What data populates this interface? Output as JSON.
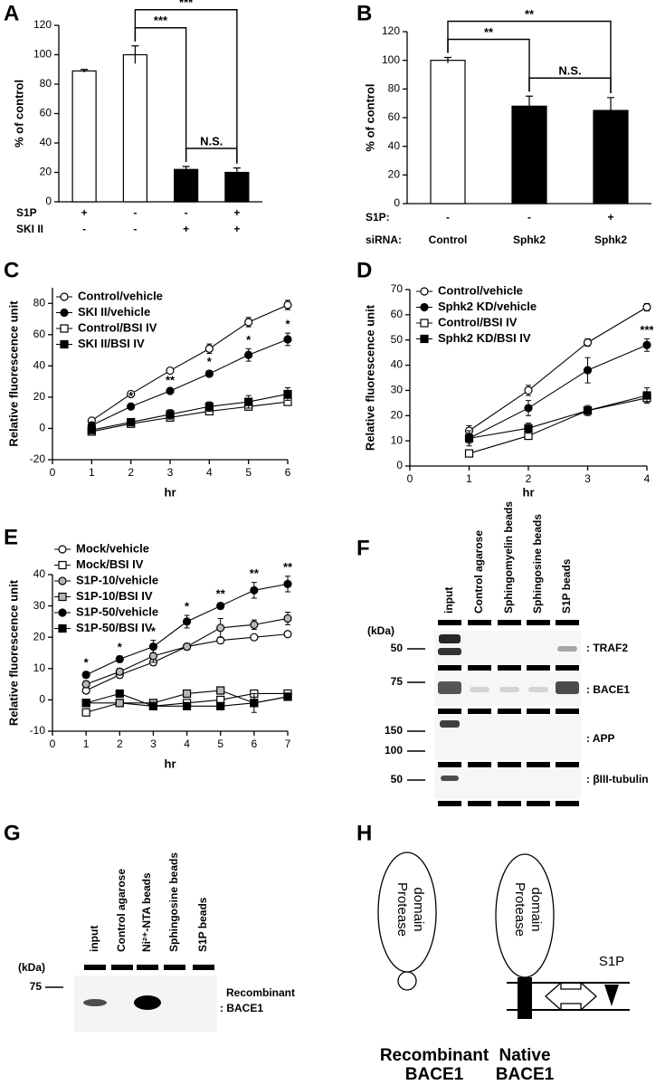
{
  "chart_data": [
    {
      "type": "bar",
      "panel": "A",
      "ylabel": "% of control",
      "ylim": [
        0,
        120
      ],
      "yticks": [
        0,
        20,
        40,
        60,
        80,
        100,
        120
      ],
      "values": [
        89,
        100,
        22,
        20
      ],
      "errors": [
        1,
        6,
        2,
        3
      ],
      "colors": [
        "#ffffff",
        "#ffffff",
        "#000000",
        "#000000"
      ],
      "conditions": [
        {
          "label": "S1P",
          "values": [
            "+",
            "-",
            "-",
            "+"
          ]
        },
        {
          "label": "SKI II",
          "values": [
            "-",
            "-",
            "+",
            "+"
          ]
        }
      ],
      "brackets": [
        {
          "from": 2,
          "to": 3,
          "text": "N.S."
        },
        {
          "from": 1,
          "to": 2,
          "text": "***"
        },
        {
          "from": 1,
          "to": 3,
          "text": "***"
        }
      ]
    },
    {
      "type": "bar",
      "panel": "B",
      "ylabel": "% of control",
      "ylim": [
        0,
        120
      ],
      "yticks": [
        0,
        20,
        40,
        60,
        80,
        100,
        120
      ],
      "values": [
        100,
        68,
        65
      ],
      "errors": [
        2,
        7,
        9
      ],
      "colors": [
        "#ffffff",
        "#000000",
        "#000000"
      ],
      "conditions": [
        {
          "label": "S1P:",
          "values": [
            "-",
            "-",
            "+"
          ]
        },
        {
          "label": "siRNA:",
          "values": [
            "Control",
            "Sphk2",
            "Sphk2"
          ]
        }
      ],
      "brackets": [
        {
          "from": 1,
          "to": 2,
          "text": "N.S."
        },
        {
          "from": 0,
          "to": 1,
          "text": "**"
        },
        {
          "from": 0,
          "to": 2,
          "text": "**"
        }
      ]
    },
    {
      "type": "line",
      "panel": "C",
      "xlabel": "hr",
      "ylabel": "Relative fluorescence unit",
      "xlim": [
        0,
        6
      ],
      "xticks": [
        0,
        1,
        2,
        3,
        4,
        5,
        6
      ],
      "ylim": [
        -20,
        90
      ],
      "yticks": [
        -20,
        0,
        20,
        40,
        60,
        80
      ],
      "x": [
        1,
        2,
        3,
        4,
        5,
        6
      ],
      "series": [
        {
          "name": "Control/vehicle",
          "marker": "circle",
          "fill": "#ffffff",
          "values": [
            5,
            22,
            37,
            51,
            68,
            79
          ],
          "errors": [
            1,
            1,
            1,
            3,
            3,
            3
          ]
        },
        {
          "name": "SKI II/vehicle",
          "marker": "circle",
          "fill": "#000000",
          "values": [
            2,
            14,
            24,
            35,
            47,
            57
          ],
          "errors": [
            1,
            1,
            1,
            2,
            4,
            4
          ]
        },
        {
          "name": "Control/BSI IV",
          "marker": "square",
          "fill": "#ffffff",
          "values": [
            -2,
            3,
            7,
            11,
            14,
            17
          ],
          "errors": [
            1,
            1,
            1,
            2,
            2,
            2
          ]
        },
        {
          "name": "SKI II/BSI IV",
          "marker": "square",
          "fill": "#000000",
          "values": [
            -1,
            4,
            9,
            14,
            17,
            22
          ],
          "errors": [
            2,
            1,
            3,
            3,
            4,
            4
          ]
        }
      ],
      "annotations": [
        {
          "x": 2,
          "series": 1,
          "text": "*"
        },
        {
          "x": 3,
          "series": 1,
          "text": "**"
        },
        {
          "x": 4,
          "series": 1,
          "text": "*"
        },
        {
          "x": 5,
          "series": 1,
          "text": "*"
        },
        {
          "x": 6,
          "series": 1,
          "text": "*"
        }
      ]
    },
    {
      "type": "line",
      "panel": "D",
      "xlabel": "hr",
      "ylabel": "Relative fluorescence unit",
      "xlim": [
        0,
        4
      ],
      "xticks": [
        0,
        1,
        2,
        3,
        4
      ],
      "ylim": [
        0,
        70
      ],
      "yticks": [
        0,
        10,
        20,
        30,
        40,
        50,
        60,
        70
      ],
      "x": [
        1,
        2,
        3,
        4
      ],
      "series": [
        {
          "name": "Control/vehicle",
          "marker": "circle",
          "fill": "#ffffff",
          "values": [
            14,
            30,
            49,
            63
          ],
          "errors": [
            2,
            2,
            1.5,
            1.5
          ]
        },
        {
          "name": "Sphk2 KD/vehicle",
          "marker": "circle",
          "fill": "#000000",
          "values": [
            11,
            23,
            38,
            48
          ],
          "errors": [
            3,
            3,
            5,
            2.5
          ]
        },
        {
          "name": "Control/BSI IV",
          "marker": "square",
          "fill": "#ffffff",
          "values": [
            5,
            12,
            22,
            27
          ],
          "errors": [
            1,
            1,
            1,
            2
          ]
        },
        {
          "name": "Sphk2 KD/BSI IV",
          "marker": "square",
          "fill": "#000000",
          "values": [
            11,
            15,
            22,
            28
          ],
          "errors": [
            2,
            2,
            2,
            3
          ]
        }
      ],
      "annotations": [
        {
          "x": 4,
          "series": 1,
          "text": "***"
        }
      ]
    },
    {
      "type": "line",
      "panel": "E",
      "xlabel": "hr",
      "ylabel": "Relative fluorescence unit",
      "xlim": [
        0,
        7
      ],
      "xticks": [
        0,
        1,
        2,
        3,
        4,
        5,
        6,
        7
      ],
      "ylim": [
        -10,
        40
      ],
      "yticks": [
        -10,
        0,
        10,
        20,
        30,
        40
      ],
      "x": [
        1,
        2,
        3,
        4,
        5,
        6,
        7
      ],
      "series": [
        {
          "name": "Mock/vehicle",
          "marker": "circle",
          "fill": "#ffffff",
          "values": [
            3,
            8,
            12,
            17,
            19,
            20,
            21
          ],
          "errors": [
            1,
            1,
            1,
            1,
            1,
            0.5,
            0.5
          ]
        },
        {
          "name": "Mock/BSI IV",
          "marker": "square",
          "fill": "#ffffff",
          "values": [
            -4,
            -1,
            -2,
            -1,
            0,
            2,
            2
          ],
          "errors": [
            0.5,
            1,
            1,
            1,
            1,
            0.5,
            0.5
          ]
        },
        {
          "name": "S1P-10/vehicle",
          "marker": "circle",
          "fill": "#b8b8b8",
          "values": [
            5,
            9,
            14,
            17,
            23,
            24,
            26
          ],
          "errors": [
            1,
            1,
            2,
            1,
            3,
            1.5,
            2
          ]
        },
        {
          "name": "S1P-10/BSI IV",
          "marker": "square",
          "fill": "#b8b8b8",
          "values": [
            -1,
            -1,
            -1,
            2,
            3,
            -1,
            1
          ],
          "errors": [
            1,
            1,
            1,
            1,
            1,
            1,
            1
          ]
        },
        {
          "name": "S1P-50/vehicle",
          "marker": "circle",
          "fill": "#000000",
          "values": [
            8,
            13,
            17,
            25,
            30,
            35,
            37
          ],
          "errors": [
            1,
            1,
            2,
            2,
            1,
            2.5,
            2.5
          ]
        },
        {
          "name": "S1P-50/BSI IV",
          "marker": "square",
          "fill": "#000000",
          "values": [
            -1,
            2,
            -2,
            -2,
            -2,
            -1,
            1
          ],
          "errors": [
            1,
            1,
            1,
            1,
            1,
            3,
            1
          ]
        }
      ],
      "annotations": [
        {
          "x": 1,
          "series": 4,
          "text": "*"
        },
        {
          "x": 2,
          "series": 4,
          "text": "*"
        },
        {
          "x": 3,
          "series": 4,
          "text": "*"
        },
        {
          "x": 4,
          "series": 4,
          "text": "*"
        },
        {
          "x": 5,
          "series": 4,
          "text": "**"
        },
        {
          "x": 6,
          "series": 4,
          "text": "**"
        },
        {
          "x": 7,
          "series": 4,
          "text": "**"
        }
      ]
    }
  ],
  "panel_f": {
    "panel": "F",
    "unit": "(kDa)",
    "lanes": [
      "input",
      "Control agarose",
      "Sphingomyelin beads",
      "Sphingosine beads",
      "S1P beads"
    ],
    "rows": [
      {
        "markers": [
          50
        ],
        "label": ": TRAF2"
      },
      {
        "markers": [
          75
        ],
        "label": ": BACE1"
      },
      {
        "markers": [
          150,
          100
        ],
        "label": ": APP"
      },
      {
        "markers": [
          50
        ],
        "label": ": βIII-tubulin"
      }
    ]
  },
  "panel_g": {
    "panel": "G",
    "unit": "(kDa)",
    "lanes": [
      "input",
      "Control agarose",
      "Ni²⁺-NTA beads",
      "Sphingosine beads",
      "S1P beads"
    ],
    "markers": [
      75
    ],
    "label": [
      "Recombinant",
      ": BACE1"
    ]
  },
  "panel_h": {
    "panel": "H",
    "domain_left": [
      "Protease",
      "domain"
    ],
    "domain_right": [
      "Protease",
      "domain"
    ],
    "ligand": "S1P",
    "left_name": [
      "Recombinant",
      "BACE1"
    ],
    "right_name": [
      "Native",
      "BACE1"
    ]
  }
}
